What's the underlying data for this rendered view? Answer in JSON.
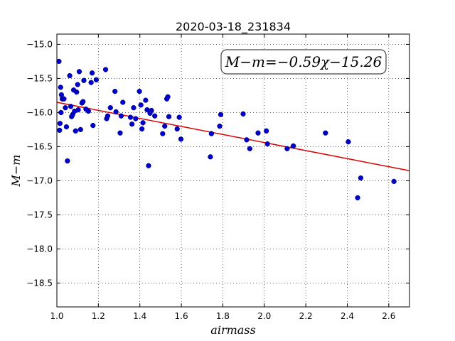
{
  "chart_data": {
    "type": "scatter",
    "title": "2020-03-18_231834",
    "xlabel": "airmass",
    "ylabel": "M−m",
    "xlim": [
      1.0,
      2.7
    ],
    "ylim": [
      -18.85,
      -14.85
    ],
    "y_inverted": true,
    "grid": true,
    "x_ticks": [
      "1.0",
      "1.2",
      "1.4",
      "1.6",
      "1.8",
      "2.0",
      "2.2",
      "2.4",
      "2.6"
    ],
    "y_ticks": [
      "−15.0",
      "−15.5",
      "−16.0",
      "−16.5",
      "−17.0",
      "−17.5",
      "−18.0",
      "−18.5"
    ],
    "annotation": "M−m=−0.59χ−15.26",
    "fit": {
      "slope": -0.59,
      "intercept": -15.26,
      "color": "#dd0000"
    },
    "point_color": "#0000cc",
    "points": [
      [
        1.01,
        -15.25
      ],
      [
        1.013,
        -16.26
      ],
      [
        1.015,
        -16.16
      ],
      [
        1.018,
        -15.63
      ],
      [
        1.02,
        -16.0
      ],
      [
        1.022,
        -15.74
      ],
      [
        1.026,
        -15.8
      ],
      [
        1.034,
        -15.8
      ],
      [
        1.041,
        -15.93
      ],
      [
        1.046,
        -16.21
      ],
      [
        1.051,
        -16.71
      ],
      [
        1.062,
        -15.46
      ],
      [
        1.067,
        -15.91
      ],
      [
        1.071,
        -16.06
      ],
      [
        1.076,
        -16.03
      ],
      [
        1.081,
        -15.67
      ],
      [
        1.085,
        -15.98
      ],
      [
        1.09,
        -16.27
      ],
      [
        1.095,
        -15.7
      ],
      [
        1.1,
        -15.59
      ],
      [
        1.103,
        -15.96
      ],
      [
        1.108,
        -15.4
      ],
      [
        1.114,
        -16.25
      ],
      [
        1.121,
        -15.86
      ],
      [
        1.126,
        -15.84
      ],
      [
        1.13,
        -15.53
      ],
      [
        1.14,
        -15.95
      ],
      [
        1.152,
        -15.98
      ],
      [
        1.165,
        -15.56
      ],
      [
        1.17,
        -15.42
      ],
      [
        1.174,
        -16.19
      ],
      [
        1.19,
        -15.52
      ],
      [
        1.235,
        -15.37
      ],
      [
        1.24,
        -16.09
      ],
      [
        1.245,
        -16.05
      ],
      [
        1.258,
        -15.93
      ],
      [
        1.28,
        -15.69
      ],
      [
        1.285,
        -15.99
      ],
      [
        1.305,
        -16.3
      ],
      [
        1.31,
        -16.05
      ],
      [
        1.318,
        -15.85
      ],
      [
        1.355,
        -16.07
      ],
      [
        1.362,
        -16.17
      ],
      [
        1.37,
        -15.93
      ],
      [
        1.38,
        -16.09
      ],
      [
        1.398,
        -15.69
      ],
      [
        1.405,
        -15.89
      ],
      [
        1.41,
        -16.24
      ],
      [
        1.415,
        -16.15
      ],
      [
        1.428,
        -15.82
      ],
      [
        1.435,
        -15.96
      ],
      [
        1.442,
        -16.78
      ],
      [
        1.449,
        -16.01
      ],
      [
        1.456,
        -15.97
      ],
      [
        1.472,
        -16.05
      ],
      [
        1.51,
        -16.31
      ],
      [
        1.52,
        -16.2
      ],
      [
        1.53,
        -15.8
      ],
      [
        1.535,
        -15.77
      ],
      [
        1.54,
        -16.06
      ],
      [
        1.58,
        -16.24
      ],
      [
        1.59,
        -16.07
      ],
      [
        1.598,
        -16.39
      ],
      [
        1.74,
        -16.65
      ],
      [
        1.745,
        -16.31
      ],
      [
        1.785,
        -16.2
      ],
      [
        1.79,
        -16.03
      ],
      [
        1.898,
        -16.02
      ],
      [
        1.915,
        -16.4
      ],
      [
        1.93,
        -16.53
      ],
      [
        1.97,
        -16.3
      ],
      [
        2.01,
        -16.27
      ],
      [
        2.015,
        -16.46
      ],
      [
        2.11,
        -16.53
      ],
      [
        2.14,
        -16.49
      ],
      [
        2.295,
        -16.3
      ],
      [
        2.405,
        -16.43
      ],
      [
        2.45,
        -17.25
      ],
      [
        2.465,
        -16.96
      ],
      [
        2.625,
        -17.01
      ]
    ]
  }
}
